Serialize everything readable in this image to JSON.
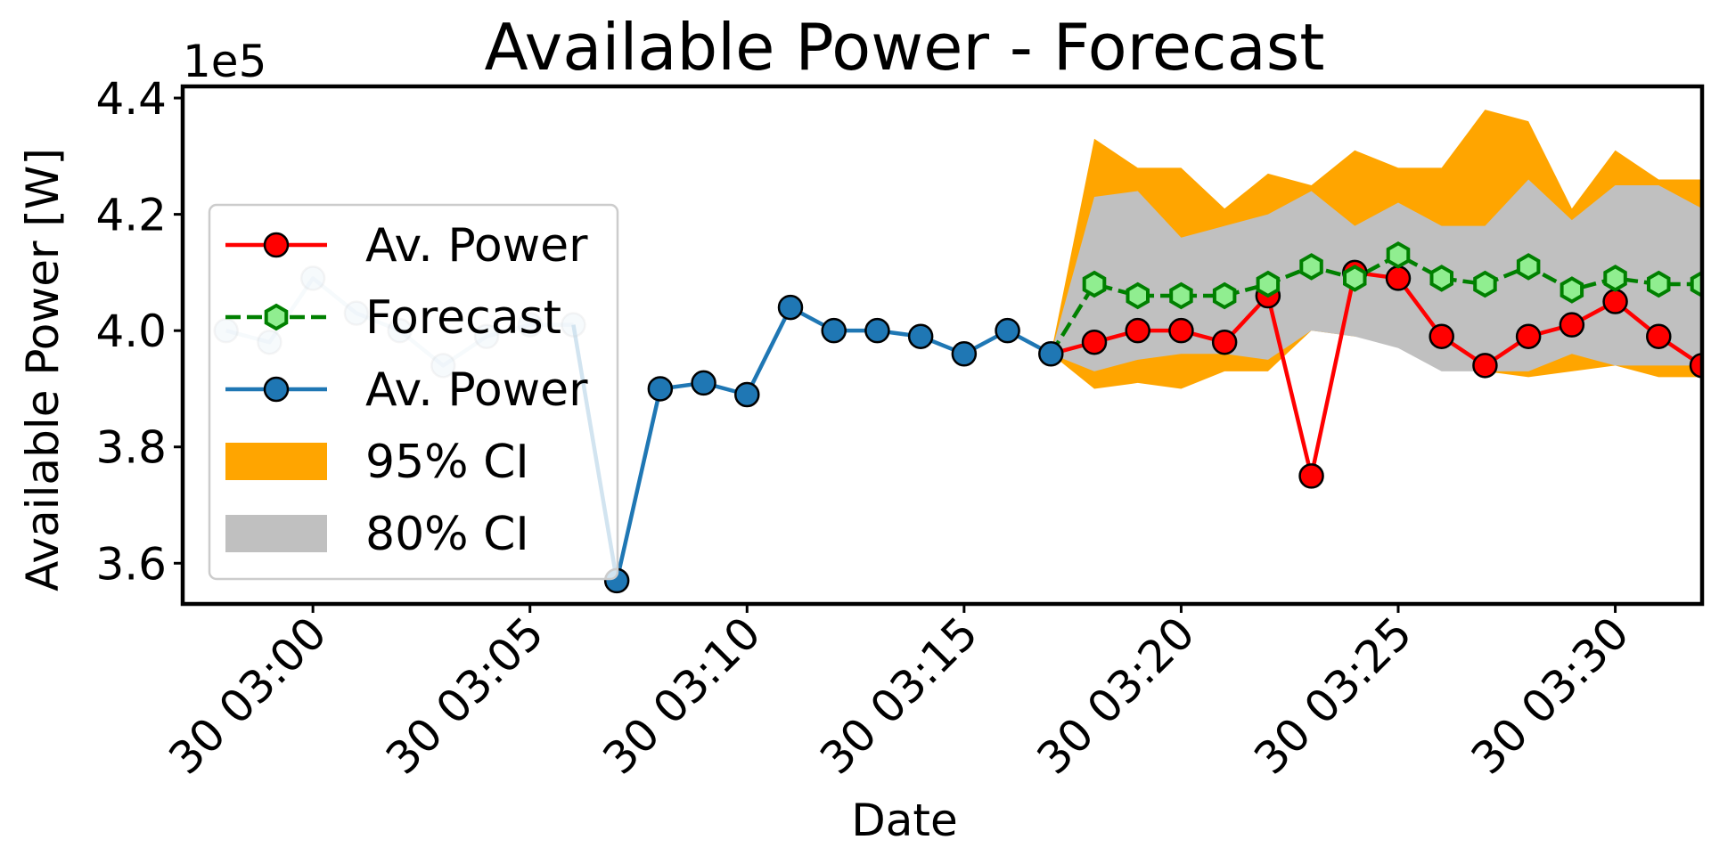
{
  "chart_data": {
    "type": "line",
    "title": "Available Power - Forecast",
    "xlabel": "Date",
    "ylabel": "Available Power [W]",
    "y_offset_text": "1e5",
    "ylim": [
      3.53,
      4.42
    ],
    "yticks": [
      3.6,
      3.8,
      4.0,
      4.2,
      4.4
    ],
    "ytick_labels": [
      "3.6",
      "3.8",
      "4.0",
      "4.2",
      "4.4"
    ],
    "xlim": [
      "30 02:57",
      "30 03:32"
    ],
    "xticks": [
      "30 03:00",
      "30 03:05",
      "30 03:10",
      "30 03:15",
      "30 03:20",
      "30 03:25",
      "30 03:30"
    ],
    "xtick_labels": [
      "30 03:00",
      "30 03:05",
      "30 03:10",
      "30 03:15",
      "30 03:20",
      "30 03:25",
      "30 03:30"
    ],
    "grid": false,
    "legend_position": "center-left",
    "legend": [
      {
        "label": "Av. Power",
        "kind": "line-marker",
        "color": "#ff0000",
        "marker": "circle",
        "linestyle": "solid"
      },
      {
        "label": "Forecast",
        "kind": "line-marker",
        "color": "#008000",
        "marker_face": "#90ee90",
        "marker": "hexagon",
        "linestyle": "dashed"
      },
      {
        "label": "Av. Power",
        "kind": "line-marker",
        "color": "#1f77b4",
        "marker": "circle",
        "linestyle": "solid"
      },
      {
        "label": "95% CI",
        "kind": "patch",
        "color": "#ffa500"
      },
      {
        "label": "80% CI",
        "kind": "patch",
        "color": "#c0c0c0"
      }
    ],
    "series": [
      {
        "name": "Av. Power",
        "role": "history",
        "color": "#1f77b4",
        "x": [
          "30 02:58",
          "30 02:59",
          "30 03:00",
          "30 03:01",
          "30 03:02",
          "30 03:03",
          "30 03:04",
          "30 03:05",
          "30 03:06",
          "30 03:07",
          "30 03:08",
          "30 03:09",
          "30 03:10",
          "30 03:11",
          "30 03:12",
          "30 03:13",
          "30 03:14",
          "30 03:15",
          "30 03:16",
          "30 03:17"
        ],
        "y": [
          4.0,
          3.98,
          4.09,
          4.03,
          4.0,
          3.94,
          3.99,
          4.01,
          4.01,
          3.57,
          3.9,
          3.91,
          3.89,
          4.04,
          4.0,
          4.0,
          3.99,
          3.96,
          4.0,
          3.96
        ]
      },
      {
        "name": "Av. Power",
        "role": "actual",
        "color": "#ff0000",
        "x": [
          "30 03:17",
          "30 03:18",
          "30 03:19",
          "30 03:20",
          "30 03:21",
          "30 03:22",
          "30 03:23",
          "30 03:24",
          "30 03:25",
          "30 03:26",
          "30 03:27",
          "30 03:28",
          "30 03:29",
          "30 03:30",
          "30 03:31",
          "30 03:32"
        ],
        "y": [
          3.96,
          3.98,
          4.0,
          4.0,
          3.98,
          4.06,
          3.75,
          4.1,
          4.09,
          3.99,
          3.94,
          3.99,
          4.01,
          4.05,
          3.99,
          3.94
        ]
      },
      {
        "name": "Forecast",
        "role": "forecast",
        "color": "#008000",
        "x": [
          "30 03:17",
          "30 03:18",
          "30 03:19",
          "30 03:20",
          "30 03:21",
          "30 03:22",
          "30 03:23",
          "30 03:24",
          "30 03:25",
          "30 03:26",
          "30 03:27",
          "30 03:28",
          "30 03:29",
          "30 03:30",
          "30 03:31",
          "30 03:32"
        ],
        "y": [
          3.96,
          4.08,
          4.06,
          4.06,
          4.06,
          4.08,
          4.11,
          4.09,
          4.13,
          4.09,
          4.08,
          4.11,
          4.07,
          4.09,
          4.08,
          4.08
        ]
      }
    ],
    "bands": [
      {
        "name": "95% CI",
        "color": "#ffa500",
        "x": [
          "30 03:17",
          "30 03:18",
          "30 03:19",
          "30 03:20",
          "30 03:21",
          "30 03:22",
          "30 03:23",
          "30 03:24",
          "30 03:25",
          "30 03:26",
          "30 03:27",
          "30 03:28",
          "30 03:29",
          "30 03:30",
          "30 03:31",
          "30 03:32"
        ],
        "lower": [
          3.96,
          3.9,
          3.91,
          3.9,
          3.93,
          3.93,
          4.0,
          3.99,
          4.01,
          3.94,
          3.93,
          3.92,
          3.93,
          3.94,
          3.92,
          3.92
        ],
        "upper": [
          3.96,
          4.33,
          4.28,
          4.28,
          4.21,
          4.27,
          4.25,
          4.31,
          4.28,
          4.28,
          4.38,
          4.36,
          4.21,
          4.31,
          4.26,
          4.26
        ]
      },
      {
        "name": "80% CI",
        "color": "#c0c0c0",
        "x": [
          "30 03:17",
          "30 03:18",
          "30 03:19",
          "30 03:20",
          "30 03:21",
          "30 03:22",
          "30 03:23",
          "30 03:24",
          "30 03:25",
          "30 03:26",
          "30 03:27",
          "30 03:28",
          "30 03:29",
          "30 03:30",
          "30 03:31",
          "30 03:32"
        ],
        "lower": [
          3.96,
          3.93,
          3.95,
          3.96,
          3.96,
          3.95,
          4.0,
          3.99,
          3.97,
          3.93,
          3.93,
          3.93,
          3.96,
          3.94,
          3.94,
          3.94
        ],
        "upper": [
          3.96,
          4.23,
          4.24,
          4.16,
          4.18,
          4.2,
          4.24,
          4.18,
          4.22,
          4.18,
          4.18,
          4.26,
          4.19,
          4.25,
          4.25,
          4.21
        ]
      }
    ]
  }
}
